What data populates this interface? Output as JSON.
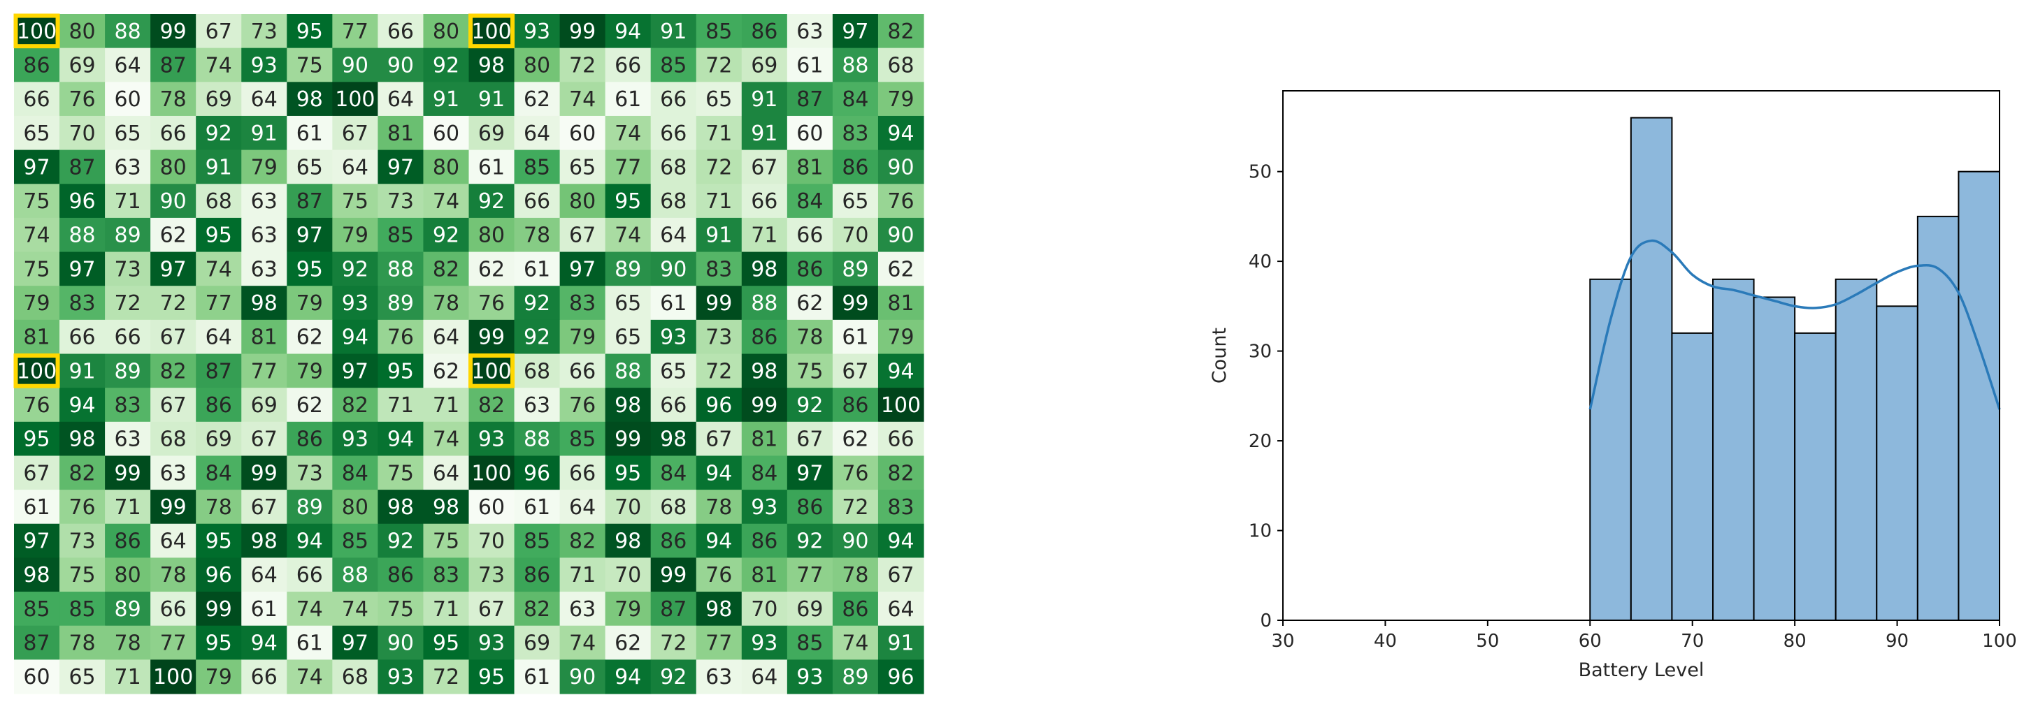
{
  "chart_data": [
    {
      "type": "heatmap",
      "colormap": "Greens",
      "value_range": [
        60,
        100
      ],
      "highlight_color": "#ffd700",
      "highlight_value": 100,
      "highlighted_cells": [
        [
          0,
          0
        ],
        [
          0,
          10
        ],
        [
          10,
          0
        ],
        [
          10,
          10
        ]
      ],
      "matrix": [
        [
          100,
          80,
          88,
          99,
          67,
          73,
          95,
          77,
          66,
          80,
          100,
          93,
          99,
          94,
          91,
          85,
          86,
          63,
          97,
          82
        ],
        [
          86,
          69,
          64,
          87,
          74,
          93,
          75,
          90,
          90,
          92,
          98,
          80,
          72,
          66,
          85,
          72,
          69,
          61,
          88,
          68
        ],
        [
          66,
          76,
          60,
          78,
          69,
          64,
          98,
          100,
          64,
          91,
          91,
          62,
          74,
          61,
          66,
          65,
          91,
          87,
          84,
          79
        ],
        [
          65,
          70,
          65,
          66,
          92,
          91,
          61,
          67,
          81,
          60,
          69,
          64,
          60,
          74,
          66,
          71,
          91,
          60,
          83,
          94
        ],
        [
          97,
          87,
          63,
          80,
          91,
          79,
          65,
          64,
          97,
          80,
          61,
          85,
          65,
          77,
          68,
          72,
          67,
          81,
          86,
          90
        ],
        [
          75,
          96,
          71,
          90,
          68,
          63,
          87,
          75,
          73,
          74,
          92,
          66,
          80,
          95,
          68,
          71,
          66,
          84,
          65,
          76
        ],
        [
          74,
          88,
          89,
          62,
          95,
          63,
          97,
          79,
          85,
          92,
          80,
          78,
          67,
          74,
          64,
          91,
          71,
          66,
          70,
          90
        ],
        [
          75,
          97,
          73,
          97,
          74,
          63,
          95,
          92,
          88,
          82,
          62,
          61,
          97,
          89,
          90,
          83,
          98,
          86,
          89,
          62
        ],
        [
          79,
          83,
          72,
          72,
          77,
          98,
          79,
          93,
          89,
          78,
          76,
          92,
          83,
          65,
          61,
          99,
          88,
          62,
          99,
          81
        ],
        [
          81,
          66,
          66,
          67,
          64,
          81,
          62,
          94,
          76,
          64,
          99,
          92,
          79,
          65,
          93,
          73,
          86,
          78,
          61,
          79
        ],
        [
          100,
          91,
          89,
          82,
          87,
          77,
          79,
          97,
          95,
          62,
          100,
          68,
          66,
          88,
          65,
          72,
          98,
          75,
          67,
          94
        ],
        [
          76,
          94,
          83,
          67,
          86,
          69,
          62,
          82,
          71,
          71,
          82,
          63,
          76,
          98,
          66,
          96,
          99,
          92,
          86,
          100
        ],
        [
          95,
          98,
          63,
          68,
          69,
          67,
          86,
          93,
          94,
          74,
          93,
          88,
          85,
          99,
          98,
          67,
          81,
          67,
          62,
          66
        ],
        [
          67,
          82,
          99,
          63,
          84,
          99,
          73,
          84,
          75,
          64,
          100,
          96,
          66,
          95,
          84,
          94,
          84,
          97,
          76,
          82
        ],
        [
          61,
          76,
          71,
          99,
          78,
          67,
          89,
          80,
          98,
          98,
          60,
          61,
          64,
          70,
          68,
          78,
          93,
          86,
          72,
          83
        ],
        [
          97,
          73,
          86,
          64,
          95,
          98,
          94,
          85,
          92,
          75,
          70,
          85,
          82,
          98,
          86,
          94,
          86,
          92,
          90,
          94
        ],
        [
          98,
          75,
          80,
          78,
          96,
          64,
          66,
          88,
          86,
          83,
          73,
          86,
          71,
          70,
          99,
          76,
          81,
          77,
          78,
          67
        ],
        [
          85,
          85,
          89,
          66,
          99,
          61,
          74,
          74,
          75,
          71,
          67,
          82,
          63,
          79,
          87,
          98,
          70,
          69,
          86,
          64
        ],
        [
          87,
          78,
          78,
          77,
          95,
          94,
          61,
          97,
          90,
          95,
          93,
          69,
          74,
          62,
          72,
          77,
          93,
          85,
          74,
          91
        ],
        [
          60,
          65,
          71,
          100,
          79,
          66,
          74,
          68,
          93,
          72,
          95,
          61,
          90,
          94,
          92,
          63,
          64,
          93,
          89,
          96
        ]
      ]
    },
    {
      "type": "bar",
      "subtype": "histogram_with_kde",
      "xlabel": "Battery Level",
      "ylabel": "Count",
      "xlim": [
        30,
        100
      ],
      "ylim": [
        0,
        59
      ],
      "xticks": [
        30,
        40,
        50,
        60,
        70,
        80,
        90,
        100
      ],
      "yticks": [
        0,
        10,
        20,
        30,
        40,
        50
      ],
      "bar_color": "#8db8dc",
      "bar_edge_color": "#000000",
      "kde_color": "#2a7ab9",
      "bins": [
        {
          "start": 60,
          "end": 64,
          "count": 38
        },
        {
          "start": 64,
          "end": 68,
          "count": 56
        },
        {
          "start": 68,
          "end": 72,
          "count": 32
        },
        {
          "start": 72,
          "end": 76,
          "count": 38
        },
        {
          "start": 76,
          "end": 80,
          "count": 36
        },
        {
          "start": 80,
          "end": 84,
          "count": 32
        },
        {
          "start": 84,
          "end": 88,
          "count": 38
        },
        {
          "start": 88,
          "end": 92,
          "count": 35
        },
        {
          "start": 92,
          "end": 96,
          "count": 45
        },
        {
          "start": 96,
          "end": 100,
          "count": 50
        }
      ],
      "kde": {
        "x": [
          60,
          62,
          64,
          66,
          68,
          70,
          72,
          74,
          76,
          78,
          80,
          82,
          84,
          86,
          88,
          90,
          92,
          94,
          96,
          98,
          100
        ],
        "y": [
          23.5,
          33.5,
          40.5,
          42.3,
          41,
          38.5,
          37.2,
          36.8,
          36.2,
          35.6,
          35,
          34.8,
          35.2,
          36.3,
          37.6,
          38.8,
          39.5,
          39.2,
          36.5,
          30.5,
          23.5
        ]
      }
    }
  ]
}
